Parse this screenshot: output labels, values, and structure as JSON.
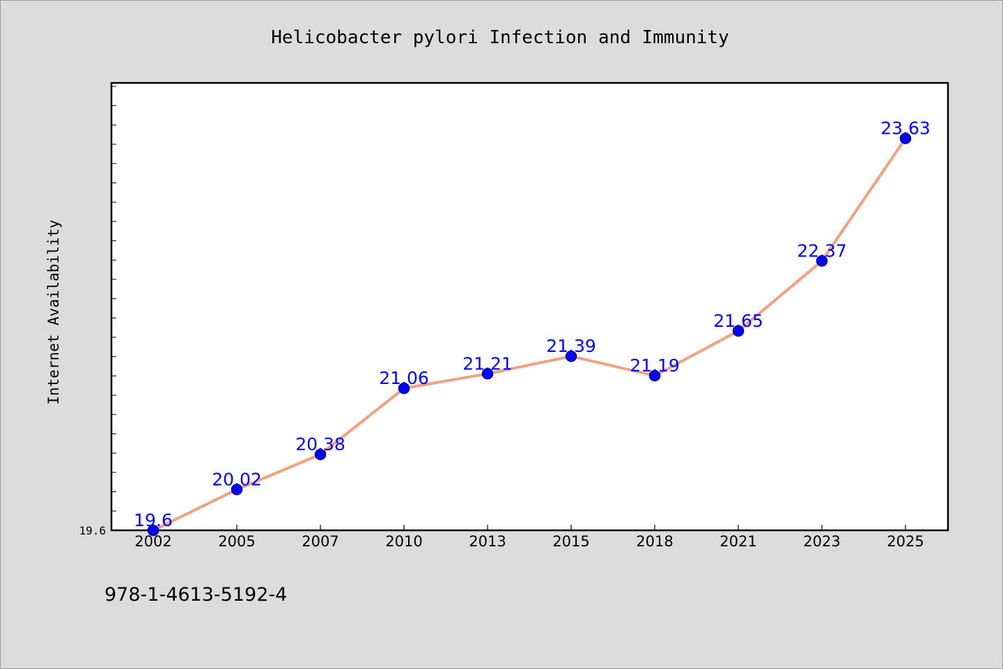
{
  "chart_data": {
    "type": "line",
    "title": "Helicobacter pylori Infection and Immunity",
    "xlabel": "",
    "ylabel": "Internet Availability",
    "categories": [
      "2002",
      "2005",
      "2007",
      "2010",
      "2013",
      "2015",
      "2018",
      "2021",
      "2023",
      "2025"
    ],
    "series": [
      {
        "values": [
          19.6,
          20.02,
          20.38,
          21.06,
          21.21,
          21.39,
          21.19,
          21.65,
          22.37,
          23.63
        ],
        "labels": [
          "19.6",
          "20.02",
          "20.38",
          "21.06",
          "21.21",
          "21.39",
          "21.19",
          "21.65",
          "22.37",
          "23.63"
        ]
      }
    ],
    "ytick_labels": [
      "19.6"
    ],
    "ylim": [
      19.6,
      24.2
    ],
    "grid": false,
    "colors": {
      "line": "#f4a07e",
      "marker": "#0000ff",
      "marker_edge": "#00008b",
      "label": "#0000ff",
      "plot_bg": "#ffffff",
      "figure_bg": "#dcdcdc"
    }
  },
  "footnote": "978-1-4613-5192-4"
}
